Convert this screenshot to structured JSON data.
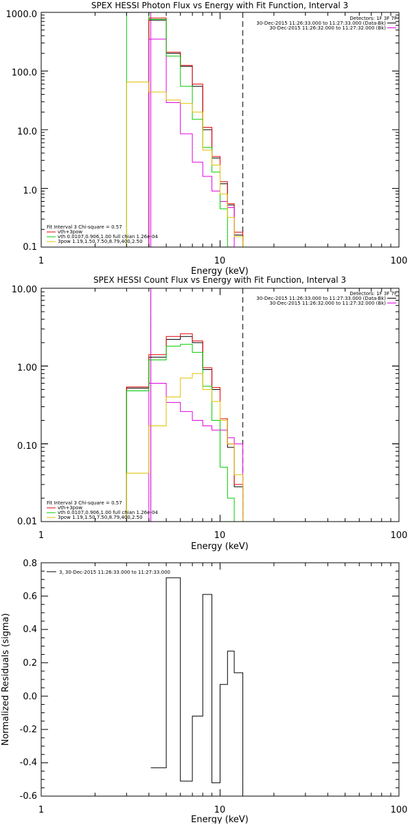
{
  "chart_data": [
    {
      "type": "line",
      "title": "SPEX HESSI Photon Flux vs Energy with Fit Function, Interval 3",
      "xlabel": "Energy (keV)",
      "ylabel": "",
      "xscale": "log",
      "yscale": "log",
      "xlim": [
        1,
        100
      ],
      "ylim": [
        0.1,
        1000
      ],
      "x_ticks": [
        "1",
        "10",
        "100"
      ],
      "y_ticks": [
        "0.1",
        "1.0",
        "10.0",
        "100.0",
        "1000.0"
      ],
      "header_lines": [
        "Detectors: 1F 3F 7F",
        "30-Dec-2015 11:26:33.000 to 11:27:33.000 (Data-Bk)",
        "30-Dec-2015 11:26:32.000 to 11:27:32.000 (Bk)"
      ],
      "legend_lines": [
        "Fit Interval  3   Chi-square = 0.57",
        "vth+3pow",
        "vth 0.0107,0.906,1.00  full chian 1.26e-04",
        "3pow 1.19,1.50,7.50,8.79,400,2.50"
      ],
      "vlines": [
        {
          "x": 4.1,
          "style": "solid",
          "color": "#e000e0"
        },
        {
          "x": 13.4,
          "style": "dashed",
          "color": "#000000"
        }
      ],
      "edges": [
        3.0,
        4.0,
        5.0,
        6.0,
        7.0,
        8.0,
        9.0,
        10.0,
        11.0,
        12.0,
        13.4
      ],
      "series": [
        {
          "name": "",
          "color": "#000000",
          "values": [
            null,
            740,
            200,
            120,
            55,
            10,
            3.3,
            1.2,
            0.52,
            0.16
          ]
        },
        {
          "name": "",
          "color": "#e00000",
          "values": [
            null,
            800,
            210,
            125,
            60,
            11,
            3.5,
            1.3,
            0.55,
            0.18
          ]
        },
        {
          "name": "",
          "color": "#e000e0",
          "values": [
            null,
            350,
            29,
            8.5,
            2.8,
            1.6,
            0.9,
            0.6,
            0.47,
            null
          ]
        },
        {
          "name": "",
          "color": "#00cc00",
          "values": [
            1000,
            760,
            180,
            55,
            15,
            5,
            1.9,
            0.45,
            0.1,
            null
          ]
        },
        {
          "name": "",
          "color": "#e0c000",
          "values": [
            65,
            44,
            32,
            28,
            20,
            4.5,
            2.5,
            0.8,
            0.32,
            0.15
          ]
        }
      ]
    },
    {
      "type": "line",
      "title": "SPEX HESSI Count Flux vs Energy with Fit Function, Interval 3",
      "xlabel": "Energy (keV)",
      "ylabel": "",
      "xscale": "log",
      "yscale": "log",
      "xlim": [
        1,
        100
      ],
      "ylim": [
        0.01,
        10
      ],
      "x_ticks": [
        "1",
        "10",
        "100"
      ],
      "y_ticks": [
        "0.01",
        "0.10",
        "1.00",
        "10.00"
      ],
      "header_lines": [
        "Detectors: 1F 3F 7F",
        "30-Dec-2015 11:26:33.000 to 11:27:33.000 (Data-Bk)",
        "30-Dec-2015 11:26:32.000 to 11:27:32.000 (Bk)"
      ],
      "legend_lines": [
        "Fit Interval  3   Chi-square = 0.57",
        "vth+3pow",
        "vth 0.0107,0.906,1.00  full chian 1.26e-04",
        "3pow 1.19,1.50,7.50,8.79,400,2.50"
      ],
      "vlines": [
        {
          "x": 4.1,
          "style": "dotted",
          "color": "#000000"
        },
        {
          "x": 4.1,
          "style": "solid",
          "color": "#e000e0"
        },
        {
          "x": 13.4,
          "style": "dashed",
          "color": "#000000"
        }
      ],
      "edges": [
        3.0,
        4.0,
        5.0,
        6.0,
        7.0,
        8.0,
        9.0,
        10.0,
        11.0,
        12.0,
        13.4
      ],
      "series": [
        {
          "name": "",
          "color": "#000000",
          "values": [
            0.52,
            1.3,
            2.2,
            2.4,
            2.0,
            0.9,
            0.5,
            0.2,
            0.09,
            0.028
          ]
        },
        {
          "name": "",
          "color": "#e00000",
          "values": [
            0.54,
            1.4,
            2.4,
            2.6,
            2.1,
            0.95,
            0.53,
            0.21,
            0.1,
            0.03
          ]
        },
        {
          "name": "",
          "color": "#e000e0",
          "values": [
            null,
            0.6,
            0.34,
            0.26,
            0.2,
            0.17,
            0.15,
            0.15,
            0.12,
            0.1
          ]
        },
        {
          "name": "",
          "color": "#00cc00",
          "values": [
            0.48,
            1.2,
            1.8,
            1.9,
            1.5,
            0.55,
            0.2,
            0.05,
            0.02,
            null
          ]
        },
        {
          "name": "",
          "color": "#e0c000",
          "values": [
            0.042,
            0.17,
            0.4,
            0.7,
            0.8,
            0.5,
            0.35,
            0.2,
            0.1,
            0.04
          ]
        }
      ]
    },
    {
      "type": "line",
      "title": "",
      "xlabel": "Energy (keV)",
      "ylabel": "Normalized Residuals (sigma)",
      "xscale": "log",
      "yscale": "linear",
      "xlim": [
        1,
        100
      ],
      "ylim": [
        -0.6,
        0.8
      ],
      "x_ticks": [
        "1",
        "10",
        "100"
      ],
      "y_ticks": [
        "-0.6",
        "-0.4",
        "-0.2",
        "0.0",
        "0.2",
        "0.4",
        "0.6",
        "0.8"
      ],
      "legend_lines": [
        "3, 30-Dec-2015 11:26:33.000 to 11:27:33.000"
      ],
      "edges": [
        4.1,
        5.0,
        6.0,
        7.0,
        8.0,
        9.0,
        10.0,
        11.0,
        12.0,
        13.4
      ],
      "series": [
        {
          "name": "3, 30-Dec-2015 11:26:33.000 to 11:27:33.000",
          "color": "#000000",
          "values": [
            -0.43,
            0.71,
            -0.51,
            -0.12,
            0.61,
            -0.52,
            0.07,
            0.27,
            0.14
          ]
        }
      ]
    }
  ]
}
